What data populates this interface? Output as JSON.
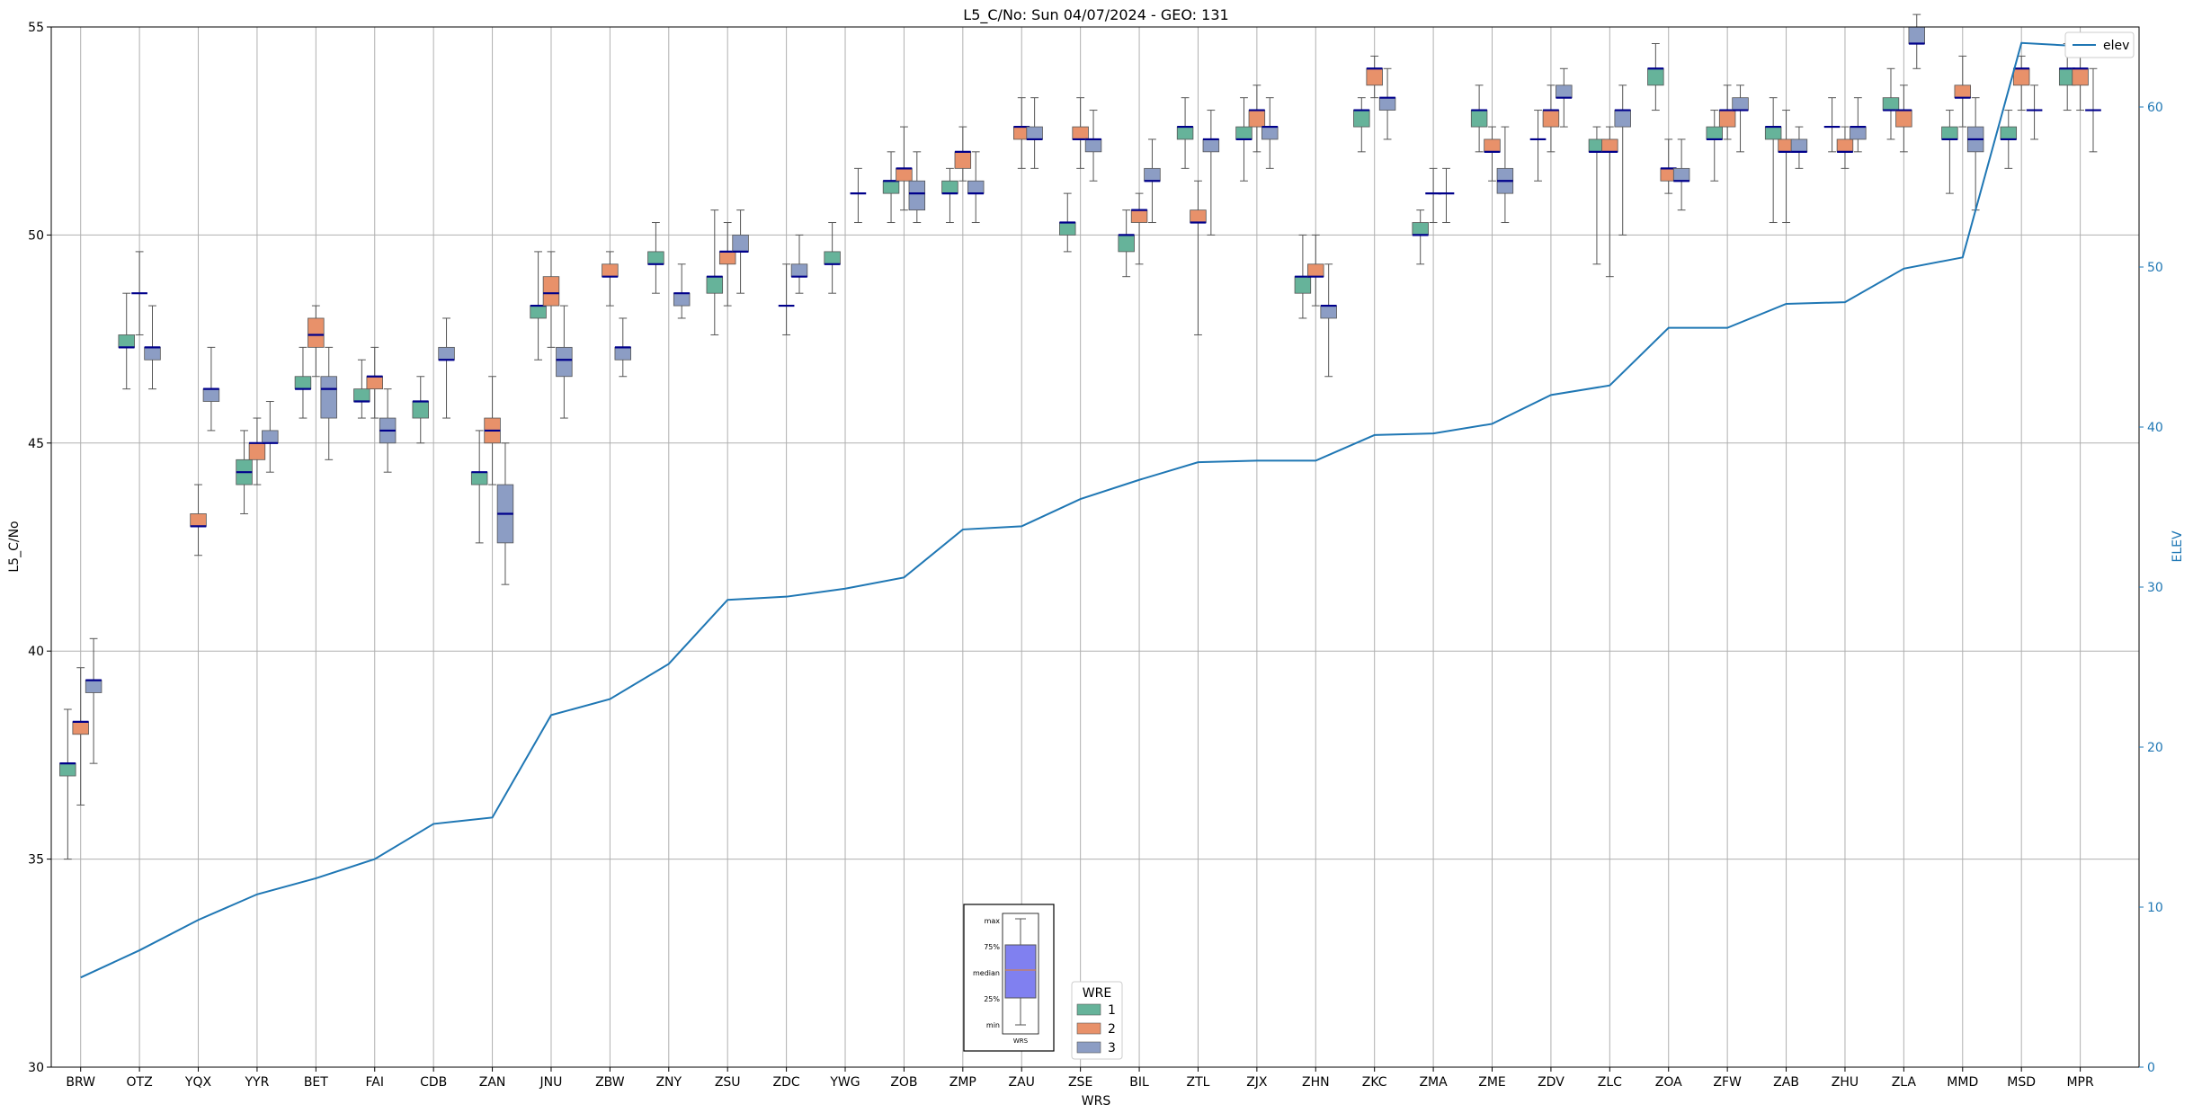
{
  "chart_data": {
    "type": "box",
    "title": "L5_C/No: Sun 04/07/2024 - GEO: 131",
    "xlabel": "WRS",
    "ylabel": "L5_C/No",
    "y2label": "ELEV",
    "ylim": [
      30,
      55
    ],
    "y2lim": [
      0,
      65
    ],
    "yticks": [
      30,
      35,
      40,
      45,
      50,
      55
    ],
    "y2ticks": [
      0,
      10,
      20,
      30,
      40,
      50,
      60
    ],
    "grid": true,
    "categories": [
      "BRW",
      "OTZ",
      "YQX",
      "YYR",
      "BET",
      "FAI",
      "CDB",
      "ZAN",
      "JNU",
      "ZBW",
      "ZNY",
      "ZSU",
      "ZDC",
      "YWG",
      "ZOB",
      "ZMP",
      "ZAU",
      "ZSE",
      "BIL",
      "ZTL",
      "ZJX",
      "ZHN",
      "ZKC",
      "ZMA",
      "ZME",
      "ZDV",
      "ZLC",
      "ZOA",
      "ZFW",
      "ZAB",
      "ZHU",
      "ZLA",
      "MMD",
      "MSD",
      "MPR"
    ],
    "colors": {
      "1": "#66b39a",
      "2": "#e8916a",
      "3": "#8c9dc4",
      "median": "#00008b",
      "elev": "#1f77b4"
    },
    "elevation": {
      "name": "elev",
      "values": [
        5.6,
        7.3,
        9.2,
        10.8,
        11.8,
        13.0,
        15.2,
        15.6,
        22.0,
        23.0,
        25.2,
        29.2,
        29.4,
        29.9,
        30.6,
        33.6,
        33.8,
        35.5,
        36.7,
        37.8,
        37.9,
        37.9,
        39.5,
        39.6,
        40.2,
        42.0,
        42.6,
        46.2,
        46.2,
        47.7,
        47.8,
        49.9,
        50.6,
        64.0,
        63.8
      ]
    },
    "series": [
      {
        "name": "1",
        "boxes": [
          [
            35.0,
            37.0,
            37.3,
            37.3,
            38.6
          ],
          [
            46.3,
            47.3,
            47.3,
            47.6,
            48.6
          ],
          null,
          [
            43.3,
            44.0,
            44.3,
            44.6,
            45.3
          ],
          [
            45.6,
            46.3,
            46.3,
            46.6,
            47.3
          ],
          [
            45.6,
            46.0,
            46.0,
            46.3,
            47.0
          ],
          [
            45.0,
            45.6,
            46.0,
            46.0,
            46.6
          ],
          [
            42.6,
            44.0,
            44.3,
            44.3,
            45.3
          ],
          [
            47.0,
            48.0,
            48.3,
            48.3,
            49.6
          ],
          null,
          [
            48.6,
            49.3,
            49.3,
            49.6,
            50.3
          ],
          [
            47.6,
            48.6,
            49.0,
            49.0,
            50.6
          ],
          null,
          [
            48.6,
            49.3,
            49.3,
            49.6,
            50.3
          ],
          [
            50.3,
            51.0,
            51.3,
            51.3,
            52.0
          ],
          [
            50.3,
            51.0,
            51.0,
            51.3,
            51.6
          ],
          null,
          [
            49.6,
            50.0,
            50.3,
            50.3,
            51.0
          ],
          [
            49.0,
            49.6,
            50.0,
            50.0,
            50.6
          ],
          [
            51.6,
            52.3,
            52.6,
            52.6,
            53.3
          ],
          [
            51.3,
            52.3,
            52.3,
            52.6,
            53.3
          ],
          [
            48.0,
            48.6,
            49.0,
            49.0,
            50.0
          ],
          [
            52.0,
            52.6,
            53.0,
            53.0,
            53.3
          ],
          [
            49.3,
            50.0,
            50.0,
            50.3,
            50.6
          ],
          [
            52.0,
            52.6,
            53.0,
            53.0,
            53.6
          ],
          [
            51.3,
            52.3,
            52.3,
            52.3,
            53.0
          ],
          [
            49.3,
            52.0,
            52.0,
            52.3,
            52.6
          ],
          [
            53.0,
            53.6,
            54.0,
            54.0,
            54.6
          ],
          [
            51.3,
            52.3,
            52.3,
            52.6,
            53.0
          ],
          [
            50.3,
            52.3,
            52.6,
            52.6,
            53.3
          ],
          [
            52.0,
            52.6,
            52.6,
            52.6,
            53.3
          ],
          [
            52.3,
            53.0,
            53.0,
            53.3,
            54.0
          ],
          [
            51.0,
            52.3,
            52.3,
            52.6,
            53.0
          ],
          [
            51.6,
            52.3,
            52.3,
            52.6,
            53.0
          ],
          [
            53.0,
            53.6,
            54.0,
            54.0,
            54.6
          ]
        ]
      },
      {
        "name": "2",
        "boxes": [
          [
            36.3,
            38.0,
            38.3,
            38.3,
            39.6
          ],
          [
            47.6,
            48.6,
            48.6,
            48.6,
            49.6
          ],
          [
            42.3,
            43.0,
            43.0,
            43.3,
            44.0
          ],
          [
            44.0,
            44.6,
            45.0,
            45.0,
            45.6
          ],
          [
            46.6,
            47.3,
            47.6,
            48.0,
            48.3
          ],
          [
            45.6,
            46.3,
            46.6,
            46.6,
            47.3
          ],
          null,
          [
            44.0,
            45.0,
            45.3,
            45.6,
            46.6
          ],
          [
            47.3,
            48.3,
            48.6,
            49.0,
            49.6
          ],
          [
            48.3,
            49.0,
            49.0,
            49.3,
            49.6
          ],
          null,
          [
            48.3,
            49.3,
            49.6,
            49.6,
            50.3
          ],
          [
            47.6,
            48.3,
            48.3,
            48.3,
            49.3
          ],
          null,
          [
            50.6,
            51.3,
            51.6,
            51.6,
            52.6
          ],
          [
            51.3,
            51.6,
            52.0,
            52.0,
            52.6
          ],
          [
            51.6,
            52.3,
            52.6,
            52.6,
            53.3
          ],
          [
            51.6,
            52.3,
            52.3,
            52.6,
            53.3
          ],
          [
            49.3,
            50.3,
            50.6,
            50.6,
            51.0
          ],
          [
            47.6,
            50.3,
            50.3,
            50.6,
            51.3
          ],
          [
            52.0,
            52.6,
            53.0,
            53.0,
            53.6
          ],
          [
            48.3,
            49.0,
            49.0,
            49.3,
            50.0
          ],
          [
            53.3,
            53.6,
            54.0,
            54.0,
            54.3
          ],
          [
            50.3,
            51.0,
            51.0,
            51.0,
            51.6
          ],
          [
            51.3,
            52.0,
            52.0,
            52.3,
            52.6
          ],
          [
            52.0,
            52.6,
            53.0,
            53.0,
            53.6
          ],
          [
            49.0,
            52.0,
            52.0,
            52.3,
            52.6
          ],
          [
            51.0,
            51.3,
            51.6,
            51.6,
            52.3
          ],
          [
            52.3,
            52.6,
            53.0,
            53.0,
            53.6
          ],
          [
            50.3,
            52.0,
            52.0,
            52.3,
            53.0
          ],
          [
            51.6,
            52.0,
            52.0,
            52.3,
            52.6
          ],
          [
            52.0,
            52.6,
            53.0,
            53.0,
            53.6
          ],
          [
            52.6,
            53.3,
            53.3,
            53.6,
            54.3
          ],
          [
            53.0,
            53.6,
            54.0,
            54.0,
            54.3
          ],
          [
            53.0,
            53.6,
            54.0,
            54.0,
            54.3
          ]
        ]
      },
      {
        "name": "3",
        "boxes": [
          [
            37.3,
            39.0,
            39.3,
            39.3,
            40.3
          ],
          [
            46.3,
            47.0,
            47.3,
            47.3,
            48.3
          ],
          [
            45.3,
            46.0,
            46.3,
            46.3,
            47.3
          ],
          [
            44.3,
            45.0,
            45.0,
            45.3,
            46.0
          ],
          [
            44.6,
            45.6,
            46.3,
            46.6,
            47.3
          ],
          [
            44.3,
            45.0,
            45.3,
            45.6,
            46.3
          ],
          [
            45.6,
            47.0,
            47.0,
            47.3,
            48.0
          ],
          [
            41.6,
            42.6,
            43.3,
            44.0,
            45.0
          ],
          [
            45.6,
            46.6,
            47.0,
            47.3,
            48.3
          ],
          [
            46.6,
            47.0,
            47.3,
            47.3,
            48.0
          ],
          [
            48.0,
            48.3,
            48.6,
            48.6,
            49.3
          ],
          [
            48.6,
            49.6,
            49.6,
            50.0,
            50.6
          ],
          [
            48.6,
            49.0,
            49.0,
            49.3,
            50.0
          ],
          [
            50.3,
            51.0,
            51.0,
            51.0,
            51.6
          ],
          [
            50.3,
            50.6,
            51.0,
            51.3,
            52.0
          ],
          [
            50.3,
            51.0,
            51.0,
            51.3,
            52.0
          ],
          [
            51.6,
            52.3,
            52.3,
            52.6,
            53.3
          ],
          [
            51.3,
            52.0,
            52.3,
            52.3,
            53.0
          ],
          [
            50.3,
            51.3,
            51.3,
            51.6,
            52.3
          ],
          [
            50.0,
            52.0,
            52.3,
            52.3,
            53.0
          ],
          [
            51.6,
            52.3,
            52.6,
            52.6,
            53.3
          ],
          [
            46.6,
            48.0,
            48.3,
            48.3,
            49.3
          ],
          [
            52.3,
            53.0,
            53.3,
            53.3,
            54.0
          ],
          [
            50.3,
            51.0,
            51.0,
            51.0,
            51.6
          ],
          [
            50.3,
            51.0,
            51.3,
            51.6,
            52.6
          ],
          [
            52.6,
            53.3,
            53.3,
            53.6,
            54.0
          ],
          [
            50.0,
            52.6,
            53.0,
            53.0,
            53.6
          ],
          [
            50.6,
            51.3,
            51.3,
            51.6,
            52.3
          ],
          [
            52.0,
            53.0,
            53.0,
            53.3,
            53.6
          ],
          [
            51.6,
            52.0,
            52.0,
            52.3,
            52.6
          ],
          [
            52.0,
            52.3,
            52.6,
            52.6,
            53.3
          ],
          [
            54.0,
            54.6,
            54.6,
            55.0,
            55.3
          ],
          [
            50.6,
            52.0,
            52.3,
            52.6,
            53.3
          ],
          [
            52.3,
            53.0,
            53.0,
            53.0,
            53.6
          ],
          [
            52.0,
            53.0,
            53.0,
            53.0,
            54.0
          ]
        ]
      }
    ],
    "legend": {
      "title": "WRE",
      "placement": "bottom-center",
      "entries": [
        "1",
        "2",
        "3"
      ]
    },
    "elev_legend": {
      "label": "elev",
      "placement": "top-right"
    },
    "inset_key": {
      "labels": [
        "max",
        "75%",
        "median",
        "25%",
        "min"
      ],
      "xlabel": "WRS"
    }
  }
}
